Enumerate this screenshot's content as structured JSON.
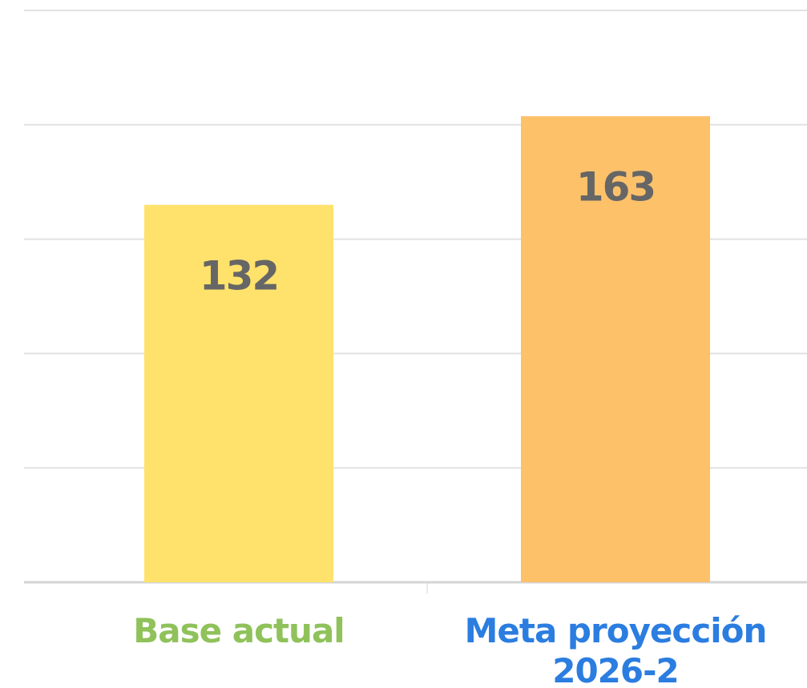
{
  "chart_data": {
    "type": "bar",
    "categories": [
      "Base actual",
      "Meta proyección 2026-2"
    ],
    "values": [
      132,
      163
    ],
    "colors": [
      "#fee26b",
      "#fdc16a"
    ],
    "category_colors": [
      "#8fc25a",
      "#2b7de0"
    ],
    "value_label_color": "#666666",
    "ylim": [
      0,
      200
    ],
    "yticks": [
      0,
      40,
      80,
      120,
      160,
      200
    ],
    "grid": true
  }
}
